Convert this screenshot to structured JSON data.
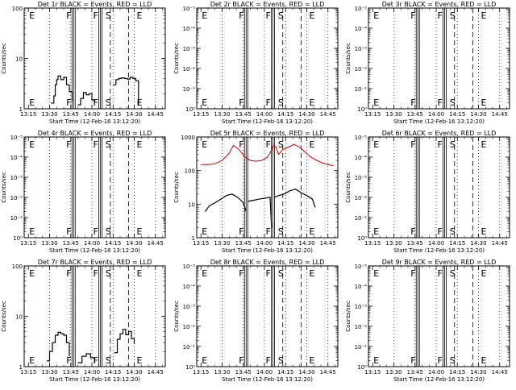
{
  "figure": {
    "ylabel": "Counts/sec",
    "xlabel": "Start Time (12-Feb-16 13:12:20)",
    "xticks": [
      "13:15",
      "13:30",
      "13:45",
      "14:00",
      "14:15",
      "14:30",
      "14:45"
    ],
    "markers": [
      {
        "letter": "E",
        "time": "13:15",
        "style": "dotted"
      },
      {
        "letter": "F",
        "time": "13:47",
        "style": "solid"
      },
      {
        "letter": "F",
        "time": "14:06",
        "style": "solid"
      },
      {
        "letter": "S",
        "time": "14:13",
        "style": "dashed"
      },
      {
        "letter": "E",
        "time": "14:26",
        "style": "dashed"
      }
    ],
    "events_color": "#000000",
    "lld_color": "#cc0000"
  },
  "chart_data": [
    {
      "type": "line",
      "panel": "Det 1r",
      "title": "Det 1r BLACK = Events, RED = LLD",
      "xlim": [
        "13:12",
        "14:52"
      ],
      "ylim": [
        1,
        100
      ],
      "yscale": "log",
      "yticks": [
        "1",
        "10",
        "100"
      ],
      "series": [
        {
          "role": "events",
          "x": [
            "13:31",
            "13:33",
            "13:34",
            "13:35",
            "13:36",
            "13:38",
            "13:40",
            "13:42",
            "13:44",
            "13:46"
          ],
          "y": [
            1.3,
            1.8,
            3.0,
            3.8,
            4.5,
            3.8,
            4.2,
            3.0,
            2.2,
            1.4
          ]
        },
        {
          "role": "events",
          "x": [
            "13:50",
            "13:52",
            "13:54",
            "13:56",
            "13:58",
            "14:00",
            "14:02"
          ],
          "y": [
            1.2,
            1.6,
            2.1,
            1.9,
            2.0,
            1.5,
            1.3
          ]
        },
        {
          "role": "events",
          "x": [
            "14:15",
            "14:17",
            "14:19",
            "14:21",
            "14:23",
            "14:25",
            "14:27",
            "14:29",
            "14:31",
            "14:33"
          ],
          "y": [
            3.0,
            3.8,
            4.0,
            4.1,
            4.0,
            3.9,
            4.2,
            4.0,
            3.6,
            1.2
          ]
        }
      ]
    },
    {
      "type": "line",
      "panel": "Det 2r",
      "title": "Det 2r BLACK = Events, RED = LLD",
      "xlim": [
        "13:12",
        "14:52"
      ],
      "ylim": [
        1,
        100000
      ],
      "yscale": "log",
      "yticks": [
        "10⁰",
        "10⁻¹",
        "10⁻²",
        "10⁻³",
        "10⁻⁴",
        "10⁻⁵"
      ],
      "series": []
    },
    {
      "type": "line",
      "panel": "Det 3r",
      "title": "Det 3r BLACK = Events, RED = LLD",
      "xlim": [
        "13:12",
        "14:52"
      ],
      "ylim": [
        1,
        100000
      ],
      "yscale": "log",
      "yticks": [
        "10⁰",
        "10⁻¹",
        "10⁻²",
        "10⁻³",
        "10⁻⁴",
        "10⁻⁵"
      ],
      "series": []
    },
    {
      "type": "line",
      "panel": "Det 4r",
      "title": "Det 4r BLACK = Events, RED = LLD",
      "xlim": [
        "13:12",
        "14:52"
      ],
      "ylim": [
        1,
        100000
      ],
      "yscale": "log",
      "yticks": [
        "10⁰",
        "10⁻¹",
        "10⁻²",
        "10⁻³",
        "10⁻⁴",
        "10⁻⁵"
      ],
      "series": []
    },
    {
      "type": "line",
      "panel": "Det 5r",
      "title": "Det 5r BLACK = Events, RED = LLD",
      "xlim": [
        "13:12",
        "14:52"
      ],
      "ylim": [
        1,
        1000
      ],
      "yscale": "log",
      "yticks": [
        "1",
        "10",
        "100",
        "1000"
      ],
      "series": [
        {
          "role": "lld",
          "x": [
            "13:15",
            "13:20",
            "13:25",
            "13:30",
            "13:35",
            "13:38",
            "13:42",
            "13:46",
            "13:50",
            "13:54",
            "13:58",
            "14:02",
            "14:04",
            "14:06",
            "14:08",
            "14:10",
            "14:13",
            "14:17",
            "14:21",
            "14:25",
            "14:29",
            "14:33",
            "14:37",
            "14:41",
            "14:45",
            "14:49"
          ],
          "y": [
            150,
            150,
            160,
            200,
            330,
            560,
            420,
            260,
            200,
            190,
            200,
            250,
            330,
            550,
            520,
            300,
            420,
            500,
            600,
            490,
            350,
            250,
            200,
            170,
            150,
            140
          ]
        },
        {
          "role": "events",
          "x": [
            "13:18",
            "13:21",
            "13:25",
            "13:29",
            "13:33",
            "13:37",
            "13:41",
            "13:45",
            "13:47"
          ],
          "y": [
            6,
            9,
            11,
            14,
            18,
            20,
            16,
            11,
            6
          ]
        },
        {
          "role": "events",
          "x": [
            "13:48",
            "13:52",
            "13:56",
            "14:00",
            "14:04",
            "14:05"
          ],
          "y": [
            12,
            13,
            14,
            15,
            16,
            2
          ]
        },
        {
          "role": "events",
          "x": [
            "14:07",
            "14:10",
            "14:14",
            "14:18",
            "14:22",
            "14:26",
            "14:30",
            "14:34",
            "14:36"
          ],
          "y": [
            16,
            18,
            20,
            25,
            28,
            22,
            18,
            14,
            8
          ]
        }
      ]
    },
    {
      "type": "line",
      "panel": "Det 6r",
      "title": "Det 6r BLACK = Events, RED = LLD",
      "xlim": [
        "13:12",
        "14:52"
      ],
      "ylim": [
        1,
        100000
      ],
      "yscale": "log",
      "yticks": [
        "10⁰",
        "10⁻¹",
        "10⁻²",
        "10⁻³",
        "10⁻⁴",
        "10⁻⁵"
      ],
      "series": []
    },
    {
      "type": "line",
      "panel": "Det 7r",
      "title": "Det 7r BLACK = Events, RED = LLD",
      "xlim": [
        "13:12",
        "14:52"
      ],
      "ylim": [
        1,
        100
      ],
      "yscale": "log",
      "yticks": [
        "1",
        "10",
        "100"
      ],
      "series": [
        {
          "role": "events",
          "x": [
            "13:28",
            "13:30",
            "13:32",
            "13:34",
            "13:36",
            "13:38",
            "13:40",
            "13:42",
            "13:44"
          ],
          "y": [
            1.3,
            2.0,
            3.0,
            4.2,
            4.8,
            4.5,
            4.2,
            3.0,
            1.6
          ]
        },
        {
          "role": "events",
          "x": [
            "13:50",
            "13:53",
            "13:56",
            "13:59",
            "14:02"
          ],
          "y": [
            1.2,
            1.6,
            1.8,
            1.5,
            1.2
          ]
        },
        {
          "role": "events",
          "x": [
            "14:16",
            "14:18",
            "14:20",
            "14:22",
            "14:24",
            "14:26",
            "14:28",
            "14:30"
          ],
          "y": [
            1.9,
            3.5,
            4.5,
            5.5,
            4.3,
            5.0,
            3.6,
            2.8
          ]
        }
      ]
    },
    {
      "type": "line",
      "panel": "Det 8r",
      "title": "Det 8r BLACK = Events, RED = LLD",
      "xlim": [
        "13:12",
        "14:52"
      ],
      "ylim": [
        1,
        100000
      ],
      "yscale": "log",
      "yticks": [
        "10⁰",
        "10⁻¹",
        "10⁻²",
        "10⁻³",
        "10⁻⁴",
        "10⁻⁵"
      ],
      "series": []
    },
    {
      "type": "line",
      "panel": "Det 9r",
      "title": "Det 9r BLACK = Events, RED = LLD",
      "xlim": [
        "13:12",
        "14:52"
      ],
      "ylim": [
        1,
        100000
      ],
      "yscale": "log",
      "yticks": [
        "10⁰",
        "10⁻¹",
        "10⁻²",
        "10⁻³",
        "10⁻⁴",
        "10⁻⁵"
      ],
      "series": []
    }
  ]
}
